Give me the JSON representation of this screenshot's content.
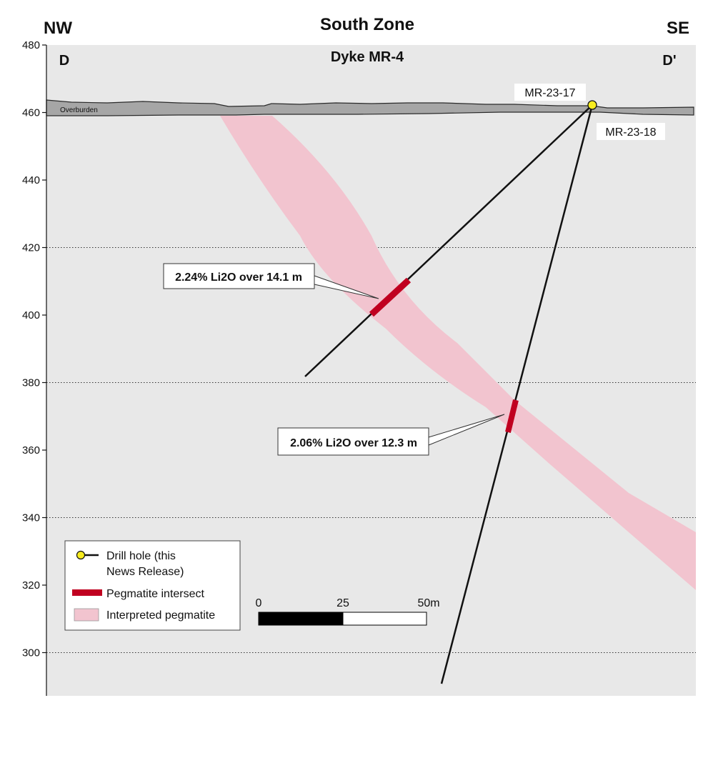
{
  "header": {
    "left_direction": "NW",
    "title": "South Zone",
    "right_direction": "SE"
  },
  "section": {
    "subtitle": "Dyke MR-4",
    "left_label": "D",
    "right_label": "D'",
    "overburden_label": "Overburden",
    "elevation_ticks": [
      "480",
      "460",
      "440",
      "420",
      "400",
      "380",
      "360",
      "340",
      "320",
      "300"
    ]
  },
  "chart_data": {
    "type": "cross-section",
    "title": "South Zone",
    "subtitle": "Dyke MR-4",
    "ylabel": "",
    "ylim": [
      287,
      480
    ],
    "yticks": [
      480,
      460,
      440,
      420,
      400,
      380,
      360,
      340,
      320,
      300
    ],
    "dotted_grid_at": [
      420,
      380,
      340,
      300
    ],
    "overburden_surface_elevation": 462,
    "drill_holes": [
      {
        "name": "MR-23-17",
        "collar_elevation": 462,
        "end_elevation": 382
      },
      {
        "name": "MR-23-18",
        "collar_elevation": 462,
        "end_elevation": 290
      }
    ],
    "intersects": [
      {
        "hole": "MR-23-17",
        "label": "2.24% Li2O over 14.1 m",
        "from_elevation": 410,
        "to_elevation": 400
      },
      {
        "hole": "MR-23-18",
        "label": "2.06% Li2O over 12.3 m",
        "from_elevation": 374,
        "to_elevation": 365
      }
    ],
    "scale_bar": {
      "labels": [
        "0",
        "25",
        "50m"
      ]
    }
  },
  "legend": {
    "items": [
      {
        "label": "Drill hole (this News Release)"
      },
      {
        "label": "Pegmatite intersect"
      },
      {
        "label": "Interpreted pegmatite"
      }
    ]
  },
  "colors": {
    "background": "#e8e8e8",
    "overburden": "#a6a6a6",
    "pegmatite": "#f2c4cf",
    "intersect": "#c00020",
    "collar": "#f7ec1f"
  }
}
